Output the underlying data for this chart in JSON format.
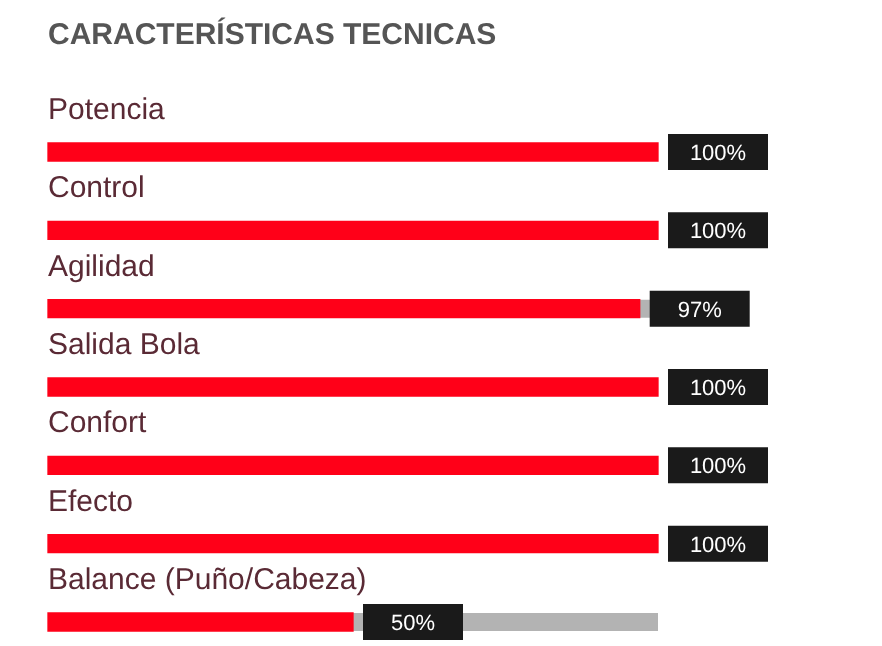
{
  "chart_data": {
    "type": "bar",
    "orientation": "horizontal",
    "title": "CARACTERÍSTICAS TECNICAS",
    "categories": [
      "Potencia",
      "Control",
      "Agilidad",
      "Salida Bola",
      "Confort",
      "Efecto",
      "Balance (Puño/Cabeza)"
    ],
    "values": [
      100,
      100,
      97,
      100,
      100,
      100,
      50
    ],
    "value_labels": [
      "100%",
      "100%",
      "97%",
      "100%",
      "100%",
      "100%",
      "50%"
    ],
    "color": "#ff0018",
    "legend": false,
    "tick_labels": false
  }
}
